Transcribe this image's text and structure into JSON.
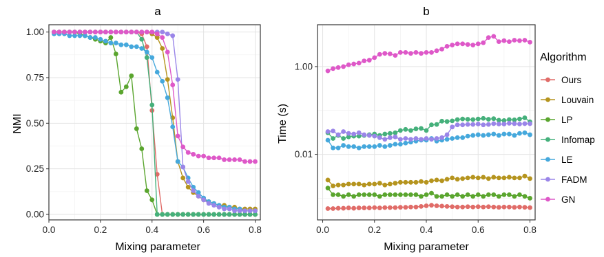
{
  "legend": {
    "title": "Algorithm",
    "entries": [
      "Ours",
      "Louvain",
      "LP",
      "Infomap",
      "LE",
      "FADM",
      "GN"
    ]
  },
  "colors": {
    "Ours": "#e06c68",
    "Louvain": "#b5941e",
    "LP": "#5aa52e",
    "Infomap": "#45b07b",
    "LE": "#45a8dc",
    "FADM": "#9a85e8",
    "GN": "#de58c8"
  },
  "chart_data": [
    {
      "type": "line",
      "title": "a",
      "xlabel": "Mixing parameter",
      "ylabel": "NMI",
      "xlim": [
        0,
        0.82
      ],
      "ylim": [
        -0.03,
        1.04
      ],
      "x_ticks": [
        "0.0",
        "0.2",
        "0.4",
        "0.6",
        "0.8"
      ],
      "y_ticks": [
        "0.00",
        "0.25",
        "0.50",
        "0.75",
        "1.00"
      ],
      "grid": true,
      "x": [
        0.02,
        0.04,
        0.06,
        0.08,
        0.1,
        0.12,
        0.14,
        0.16,
        0.18,
        0.2,
        0.22,
        0.24,
        0.26,
        0.28,
        0.3,
        0.32,
        0.34,
        0.36,
        0.38,
        0.4,
        0.42,
        0.44,
        0.46,
        0.48,
        0.5,
        0.52,
        0.54,
        0.56,
        0.58,
        0.6,
        0.62,
        0.64,
        0.66,
        0.68,
        0.7,
        0.72,
        0.74,
        0.76,
        0.78,
        0.8
      ],
      "series": [
        {
          "name": "Ours",
          "values": [
            1.0,
            1.0,
            1.0,
            1.0,
            1.0,
            1.0,
            1.0,
            1.0,
            1.0,
            1.0,
            1.0,
            1.0,
            1.0,
            1.0,
            1.0,
            1.0,
            1.0,
            0.99,
            0.92,
            0.57,
            0.22,
            0.0,
            0.0,
            0.0,
            0.0,
            0.0,
            0.0,
            0.0,
            0.0,
            0.0,
            0.0,
            0.0,
            0.0,
            0.0,
            0.0,
            0.0,
            0.0,
            0.0,
            0.0,
            0.0
          ]
        },
        {
          "name": "Louvain",
          "values": [
            1.0,
            1.0,
            1.0,
            1.0,
            1.0,
            1.0,
            1.0,
            1.0,
            1.0,
            1.0,
            1.0,
            1.0,
            1.0,
            1.0,
            1.0,
            1.0,
            1.0,
            1.0,
            1.0,
            0.99,
            0.97,
            0.91,
            0.74,
            0.53,
            0.29,
            0.2,
            0.15,
            0.12,
            0.1,
            0.08,
            0.07,
            0.06,
            0.05,
            0.05,
            0.04,
            0.04,
            0.03,
            0.03,
            0.03,
            0.03
          ]
        },
        {
          "name": "LP",
          "values": [
            1.0,
            1.0,
            1.0,
            1.0,
            1.0,
            0.99,
            0.98,
            0.97,
            0.96,
            0.95,
            0.94,
            0.97,
            0.88,
            0.67,
            0.7,
            0.76,
            0.47,
            0.36,
            0.13,
            0.08,
            0.0,
            0.0,
            0.0,
            0.0,
            0.0,
            0.0,
            0.0,
            0.0,
            0.0,
            0.0,
            0.0,
            0.0,
            0.0,
            0.0,
            0.0,
            0.0,
            0.0,
            0.0,
            0.0,
            0.0
          ]
        },
        {
          "name": "Infomap",
          "values": [
            1.0,
            1.0,
            1.0,
            1.0,
            1.0,
            1.0,
            1.0,
            1.0,
            1.0,
            1.0,
            1.0,
            1.0,
            1.0,
            1.0,
            1.0,
            1.0,
            1.0,
            0.96,
            0.86,
            0.6,
            0.0,
            0.0,
            0.0,
            0.0,
            0.0,
            0.0,
            0.0,
            0.0,
            0.0,
            0.0,
            0.0,
            0.0,
            0.0,
            0.0,
            0.0,
            0.0,
            0.0,
            0.0,
            0.0,
            0.0
          ]
        },
        {
          "name": "LE",
          "values": [
            0.99,
            0.99,
            0.99,
            0.98,
            0.98,
            0.98,
            0.98,
            0.97,
            0.97,
            0.96,
            0.95,
            0.94,
            0.94,
            0.93,
            0.93,
            0.92,
            0.92,
            0.91,
            0.89,
            0.86,
            0.78,
            0.73,
            0.64,
            0.48,
            0.29,
            0.26,
            0.2,
            0.15,
            0.12,
            0.09,
            0.07,
            0.06,
            0.05,
            0.04,
            0.04,
            0.03,
            0.03,
            0.02,
            0.02,
            0.02
          ]
        },
        {
          "name": "FADM",
          "values": [
            1.0,
            1.0,
            1.0,
            1.0,
            1.0,
            1.0,
            1.0,
            1.0,
            1.0,
            1.0,
            1.0,
            1.0,
            1.0,
            1.0,
            1.0,
            1.0,
            1.0,
            1.0,
            1.0,
            1.0,
            1.0,
            1.0,
            0.99,
            0.98,
            0.74,
            0.26,
            0.18,
            0.13,
            0.1,
            0.08,
            0.06,
            0.05,
            0.04,
            0.03,
            0.03,
            0.02,
            0.02,
            0.02,
            0.02,
            0.02
          ]
        },
        {
          "name": "GN",
          "values": [
            1.0,
            1.0,
            1.0,
            1.0,
            1.0,
            1.0,
            1.0,
            1.0,
            1.0,
            1.0,
            1.0,
            1.0,
            1.0,
            1.0,
            1.0,
            1.0,
            1.0,
            1.0,
            1.0,
            1.0,
            0.99,
            0.97,
            0.89,
            0.71,
            0.43,
            0.37,
            0.34,
            0.33,
            0.32,
            0.32,
            0.31,
            0.31,
            0.31,
            0.3,
            0.3,
            0.3,
            0.3,
            0.29,
            0.29,
            0.29
          ]
        }
      ]
    },
    {
      "type": "line",
      "title": "b",
      "xlabel": "Mixing parameter",
      "ylabel": "Time (s)",
      "y_scale": "log",
      "xlim": [
        -0.02,
        0.82
      ],
      "ylim": [
        0.00032,
        9
      ],
      "x_ticks": [
        "0.0",
        "0.2",
        "0.4",
        "0.6",
        "0.8"
      ],
      "y_ticks": [
        "0.01",
        "1.00"
      ],
      "grid": true,
      "legend_position": "right",
      "x": [
        0.02,
        0.04,
        0.06,
        0.08,
        0.1,
        0.12,
        0.14,
        0.16,
        0.18,
        0.2,
        0.22,
        0.24,
        0.26,
        0.28,
        0.3,
        0.32,
        0.34,
        0.36,
        0.38,
        0.4,
        0.42,
        0.44,
        0.46,
        0.48,
        0.5,
        0.52,
        0.54,
        0.56,
        0.58,
        0.6,
        0.62,
        0.64,
        0.66,
        0.68,
        0.7,
        0.72,
        0.74,
        0.76,
        0.78,
        0.8
      ],
      "series": [
        {
          "name": "Ours",
          "values": [
            0.00058,
            0.00058,
            0.00059,
            0.00059,
            0.0006,
            0.00059,
            0.0006,
            0.0006,
            0.0006,
            0.00061,
            0.0006,
            0.00061,
            0.00061,
            0.00061,
            0.00062,
            0.00062,
            0.00063,
            0.00063,
            0.00065,
            0.00067,
            0.00069,
            0.00067,
            0.00066,
            0.00065,
            0.00064,
            0.00063,
            0.00063,
            0.00064,
            0.00063,
            0.00064,
            0.00063,
            0.00064,
            0.00063,
            0.00062,
            0.00063,
            0.00063,
            0.00062,
            0.00063,
            0.00062,
            0.00061
          ]
        },
        {
          "name": "Louvain",
          "values": [
            0.0026,
            0.0019,
            0.002,
            0.002,
            0.0021,
            0.0021,
            0.0021,
            0.002,
            0.0021,
            0.0021,
            0.0022,
            0.002,
            0.0021,
            0.0022,
            0.0023,
            0.0023,
            0.0023,
            0.0023,
            0.0024,
            0.0023,
            0.0025,
            0.0026,
            0.0025,
            0.0027,
            0.0029,
            0.0027,
            0.0028,
            0.0029,
            0.003,
            0.0029,
            0.003,
            0.0028,
            0.003,
            0.0029,
            0.0029,
            0.003,
            0.0029,
            0.0029,
            0.0032,
            0.0028
          ]
        },
        {
          "name": "LP",
          "values": [
            0.0017,
            0.0012,
            0.0012,
            0.0011,
            0.0012,
            0.0011,
            0.0012,
            0.0012,
            0.0012,
            0.0012,
            0.0011,
            0.0012,
            0.0012,
            0.0012,
            0.0012,
            0.0012,
            0.0012,
            0.0012,
            0.0011,
            0.0012,
            0.0013,
            0.0011,
            0.0011,
            0.0012,
            0.0011,
            0.0012,
            0.0011,
            0.0012,
            0.0011,
            0.0012,
            0.0011,
            0.0012,
            0.0012,
            0.0011,
            0.0012,
            0.0012,
            0.0011,
            0.0012,
            0.0011,
            0.001
          ]
        },
        {
          "name": "Infomap",
          "values": [
            0.031,
            0.023,
            0.027,
            0.023,
            0.025,
            0.026,
            0.026,
            0.027,
            0.028,
            0.029,
            0.027,
            0.029,
            0.03,
            0.031,
            0.035,
            0.037,
            0.035,
            0.038,
            0.039,
            0.035,
            0.047,
            0.048,
            0.057,
            0.056,
            0.058,
            0.062,
            0.064,
            0.063,
            0.062,
            0.064,
            0.066,
            0.063,
            0.065,
            0.06,
            0.059,
            0.062,
            0.061,
            0.064,
            0.068,
            0.055
          ]
        },
        {
          "name": "LE",
          "values": [
            0.021,
            0.014,
            0.014,
            0.016,
            0.015,
            0.015,
            0.014,
            0.015,
            0.015,
            0.015,
            0.016,
            0.015,
            0.016,
            0.017,
            0.017,
            0.018,
            0.019,
            0.02,
            0.021,
            0.021,
            0.023,
            0.02,
            0.021,
            0.022,
            0.023,
            0.024,
            0.024,
            0.026,
            0.027,
            0.028,
            0.027,
            0.028,
            0.029,
            0.027,
            0.029,
            0.029,
            0.027,
            0.03,
            0.031,
            0.028
          ]
        },
        {
          "name": "FADM",
          "values": [
            0.033,
            0.034,
            0.028,
            0.033,
            0.03,
            0.029,
            0.031,
            0.028,
            0.027,
            0.026,
            0.024,
            0.022,
            0.024,
            0.025,
            0.022,
            0.023,
            0.022,
            0.023,
            0.022,
            0.023,
            0.022,
            0.023,
            0.024,
            0.028,
            0.042,
            0.047,
            0.047,
            0.048,
            0.048,
            0.049,
            0.047,
            0.048,
            0.05,
            0.049,
            0.049,
            0.051,
            0.05,
            0.049,
            0.05,
            0.05
          ]
        },
        {
          "name": "GN",
          "values": [
            0.8,
            0.9,
            0.95,
            1.0,
            1.1,
            1.15,
            1.2,
            1.35,
            1.4,
            1.6,
            1.9,
            2.0,
            1.95,
            1.8,
            2.1,
            2.1,
            2.0,
            2.1,
            2.0,
            2.1,
            2.1,
            2.3,
            2.5,
            2.9,
            3.1,
            3.3,
            3.3,
            3.2,
            3.1,
            3.3,
            3.5,
            4.6,
            4.9,
            3.7,
            3.9,
            3.7,
            4.0,
            3.9,
            4.0,
            3.6
          ]
        }
      ]
    }
  ]
}
